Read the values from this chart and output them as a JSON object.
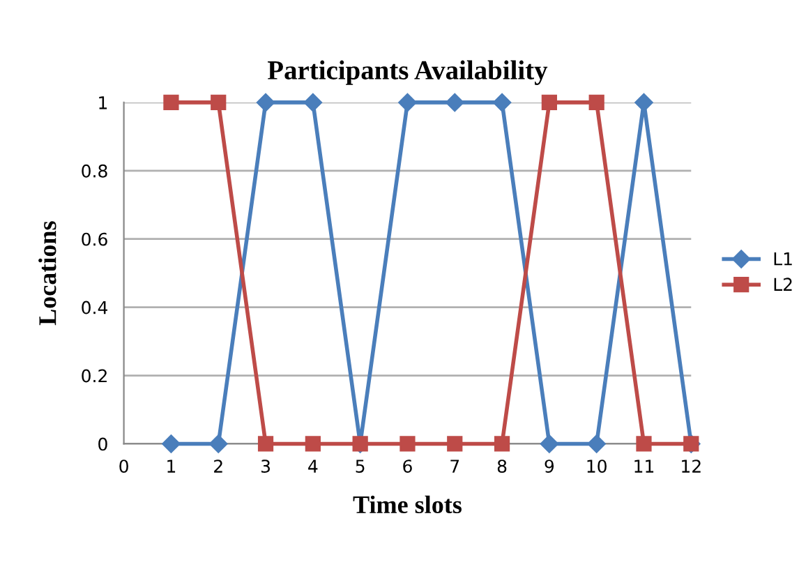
{
  "chart_data": {
    "type": "line",
    "title": "Participants Availability",
    "xlabel": "Time slots",
    "ylabel": "Locations",
    "x": [
      1,
      2,
      3,
      4,
      5,
      6,
      7,
      8,
      9,
      10,
      11,
      12
    ],
    "series": [
      {
        "name": "L1",
        "color": "#4a7ebb",
        "marker": "diamond",
        "values": [
          0,
          0,
          1,
          1,
          0,
          1,
          1,
          1,
          0,
          0,
          1,
          0
        ]
      },
      {
        "name": "L2",
        "color": "#be4b48",
        "marker": "square",
        "values": [
          1,
          1,
          0,
          0,
          0,
          0,
          0,
          0,
          1,
          1,
          0,
          0
        ]
      }
    ],
    "xlim": [
      0,
      12
    ],
    "xticks": [
      0,
      1,
      2,
      3,
      4,
      5,
      6,
      7,
      8,
      9,
      10,
      11,
      12
    ],
    "ylim": [
      0,
      1
    ],
    "yticks": [
      0,
      0.2,
      0.4,
      0.6,
      0.8,
      1
    ],
    "grid": "y",
    "legend": "right",
    "line_style": "solid"
  }
}
